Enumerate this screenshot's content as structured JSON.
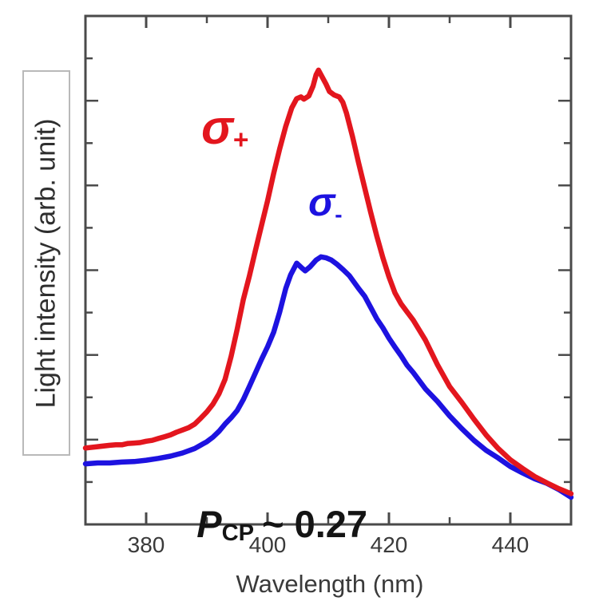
{
  "chart_data": {
    "type": "line",
    "title": "",
    "xlabel": "Wavelength (nm)",
    "ylabel": "Light intensity (arb. unit)",
    "xlim": [
      370,
      450
    ],
    "ylim": [
      0,
      1.125
    ],
    "x_ticks": [
      380,
      400,
      420,
      440
    ],
    "x_minor_ticks": [
      390,
      410,
      430
    ],
    "y_ticks_unlabeled": true,
    "y_tick_intervals": 12,
    "grid": false,
    "legend_position": "inline-text-labels",
    "colors": {
      "sigma_plus": "#e3161e",
      "sigma_minus": "#1d12e0",
      "axis": "#4a4a4a",
      "tick_text": "#3a3a3a",
      "annotation_text": "#141414",
      "ylabel_box_border": "#b9b9b9"
    },
    "series": [
      {
        "name": "sigma-plus",
        "label_parts": {
          "base": "σ",
          "sub": "+"
        },
        "color": "#e3161e",
        "points": [
          [
            370,
            0.169
          ],
          [
            372,
            0.172
          ],
          [
            374,
            0.175
          ],
          [
            375,
            0.176
          ],
          [
            376,
            0.176
          ],
          [
            377,
            0.179
          ],
          [
            378,
            0.18
          ],
          [
            379,
            0.181
          ],
          [
            380,
            0.184
          ],
          [
            381,
            0.186
          ],
          [
            382,
            0.19
          ],
          [
            383,
            0.194
          ],
          [
            384,
            0.198
          ],
          [
            385,
            0.204
          ],
          [
            386,
            0.209
          ],
          [
            387,
            0.214
          ],
          [
            388,
            0.222
          ],
          [
            389,
            0.235
          ],
          [
            390,
            0.249
          ],
          [
            391,
            0.266
          ],
          [
            392,
            0.289
          ],
          [
            393,
            0.321
          ],
          [
            394,
            0.372
          ],
          [
            395,
            0.432
          ],
          [
            396,
            0.497
          ],
          [
            397,
            0.549
          ],
          [
            398,
            0.606
          ],
          [
            399,
            0.661
          ],
          [
            400,
            0.716
          ],
          [
            401,
            0.776
          ],
          [
            402,
            0.831
          ],
          [
            403,
            0.881
          ],
          [
            404,
            0.922
          ],
          [
            404.8,
            0.942
          ],
          [
            405.5,
            0.946
          ],
          [
            406,
            0.941
          ],
          [
            406.8,
            0.948
          ],
          [
            407.5,
            0.97
          ],
          [
            408,
            0.995
          ],
          [
            408.4,
            1.005
          ],
          [
            409,
            0.99
          ],
          [
            409.6,
            0.975
          ],
          [
            410.2,
            0.958
          ],
          [
            411,
            0.95
          ],
          [
            411.8,
            0.946
          ],
          [
            412.4,
            0.934
          ],
          [
            413,
            0.91
          ],
          [
            414,
            0.858
          ],
          [
            415,
            0.8
          ],
          [
            416,
            0.745
          ],
          [
            417,
            0.69
          ],
          [
            418,
            0.638
          ],
          [
            419,
            0.59
          ],
          [
            420,
            0.548
          ],
          [
            421,
            0.512
          ],
          [
            422,
            0.488
          ],
          [
            423,
            0.47
          ],
          [
            424,
            0.452
          ],
          [
            426,
            0.408
          ],
          [
            428,
            0.353
          ],
          [
            430,
            0.305
          ],
          [
            432,
            0.27
          ],
          [
            434,
            0.233
          ],
          [
            436,
            0.198
          ],
          [
            438,
            0.168
          ],
          [
            440,
            0.143
          ],
          [
            442,
            0.124
          ],
          [
            444,
            0.106
          ],
          [
            446,
            0.092
          ],
          [
            448,
            0.079
          ],
          [
            450,
            0.068
          ]
        ]
      },
      {
        "name": "sigma-minus",
        "label_parts": {
          "base": "σ",
          "sub": "-"
        },
        "color": "#1d12e0",
        "points": [
          [
            370,
            0.134
          ],
          [
            372,
            0.136
          ],
          [
            374,
            0.136
          ],
          [
            376,
            0.138
          ],
          [
            378,
            0.139
          ],
          [
            380,
            0.142
          ],
          [
            382,
            0.146
          ],
          [
            384,
            0.151
          ],
          [
            386,
            0.158
          ],
          [
            388,
            0.168
          ],
          [
            390,
            0.183
          ],
          [
            391,
            0.193
          ],
          [
            392,
            0.206
          ],
          [
            393,
            0.222
          ],
          [
            394,
            0.236
          ],
          [
            395,
            0.252
          ],
          [
            396,
            0.276
          ],
          [
            397,
            0.305
          ],
          [
            398,
            0.335
          ],
          [
            399,
            0.365
          ],
          [
            400,
            0.393
          ],
          [
            401,
            0.425
          ],
          [
            402,
            0.47
          ],
          [
            403,
            0.522
          ],
          [
            403.8,
            0.552
          ],
          [
            404.8,
            0.578
          ],
          [
            405.6,
            0.568
          ],
          [
            406.2,
            0.561
          ],
          [
            407,
            0.57
          ],
          [
            408,
            0.585
          ],
          [
            408.8,
            0.592
          ],
          [
            409.6,
            0.59
          ],
          [
            410.5,
            0.585
          ],
          [
            411.5,
            0.575
          ],
          [
            412.5,
            0.563
          ],
          [
            413.5,
            0.55
          ],
          [
            415,
            0.522
          ],
          [
            416,
            0.505
          ],
          [
            417,
            0.48
          ],
          [
            418,
            0.455
          ],
          [
            419,
            0.435
          ],
          [
            420,
            0.412
          ],
          [
            421,
            0.392
          ],
          [
            422,
            0.373
          ],
          [
            423,
            0.352
          ],
          [
            424,
            0.336
          ],
          [
            426,
            0.3
          ],
          [
            428,
            0.272
          ],
          [
            430,
            0.24
          ],
          [
            432,
            0.212
          ],
          [
            434,
            0.186
          ],
          [
            436,
            0.164
          ],
          [
            438,
            0.147
          ],
          [
            440,
            0.128
          ],
          [
            442,
            0.114
          ],
          [
            444,
            0.101
          ],
          [
            446,
            0.091
          ],
          [
            448,
            0.077
          ],
          [
            450,
            0.06
          ]
        ]
      }
    ],
    "annotation": {
      "text": "P_CP ~ 0.27",
      "parts": {
        "p": "P",
        "sub": "CP",
        "rest": "~ 0.27"
      }
    }
  }
}
